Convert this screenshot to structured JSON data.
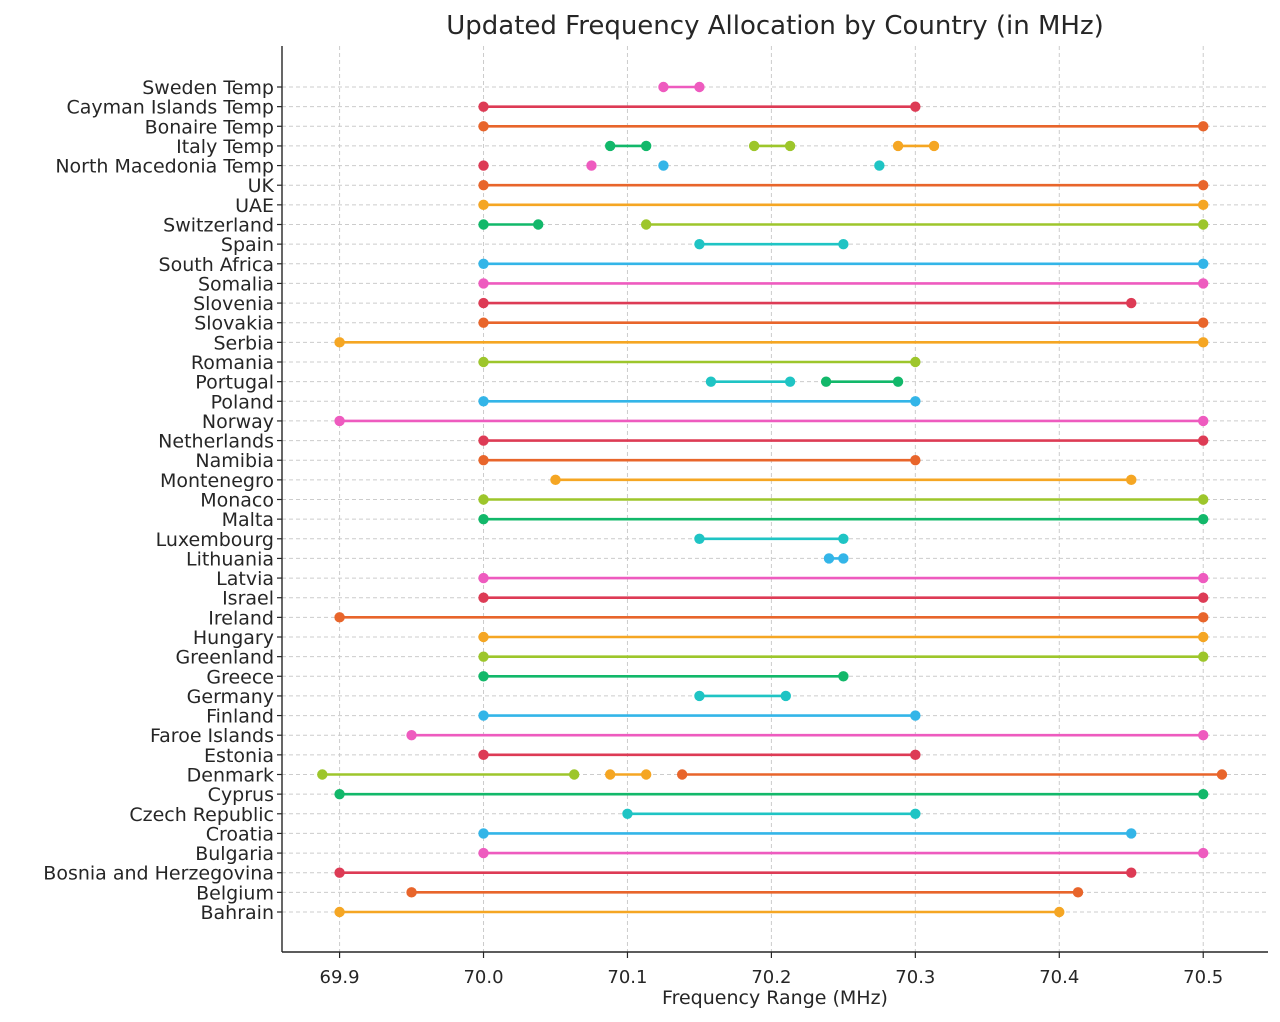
{
  "chart_data": {
    "type": "line",
    "title": "Updated Frequency Allocation by Country (in MHz)",
    "xlabel": "Frequency Range (MHz)",
    "ylabel": "",
    "xlim": [
      69.86,
      70.545
    ],
    "grid": true,
    "xticks": [
      "69.9",
      "70.0",
      "70.1",
      "70.2",
      "70.3",
      "70.4",
      "70.5"
    ],
    "categories": [
      "Bahrain",
      "Belgium",
      "Bosnia and Herzegovina",
      "Bulgaria",
      "Croatia",
      "Czech Republic",
      "Cyprus",
      "Denmark",
      "Estonia",
      "Faroe Islands",
      "Finland",
      "Germany",
      "Greece",
      "Greenland",
      "Hungary",
      "Ireland",
      "Israel",
      "Latvia",
      "Lithuania",
      "Luxembourg",
      "Malta",
      "Monaco",
      "Montenegro",
      "Namibia",
      "Netherlands",
      "Norway",
      "Poland",
      "Portugal",
      "Romania",
      "Serbia",
      "Slovakia",
      "Slovenia",
      "Somalia",
      "South Africa",
      "Spain",
      "Switzerland",
      "UAE",
      "UK",
      "North Macedonia Temp",
      "Italy Temp",
      "Bonaire Temp",
      "Cayman Islands Temp",
      "Sweden Temp"
    ],
    "segments": [
      {
        "row": "Bahrain",
        "x": [
          69.9,
          70.4
        ],
        "color": "#f5a623"
      },
      {
        "row": "Belgium",
        "x": [
          69.95,
          70.413
        ],
        "color": "#e8652b"
      },
      {
        "row": "Bosnia and Herzegovina",
        "x": [
          69.9,
          70.45
        ],
        "color": "#dd3b55"
      },
      {
        "row": "Bulgaria",
        "x": [
          70.0,
          70.5
        ],
        "color": "#ee5bbf"
      },
      {
        "row": "Croatia",
        "x": [
          70.0,
          70.45
        ],
        "color": "#33b5e8"
      },
      {
        "row": "Czech Republic",
        "x": [
          70.1,
          70.3
        ],
        "color": "#1fc4c4"
      },
      {
        "row": "Cyprus",
        "x": [
          69.9,
          70.5
        ],
        "color": "#12b86a"
      },
      {
        "row": "Denmark",
        "x": [
          69.888,
          70.063
        ],
        "color": "#9dc62b"
      },
      {
        "row": "Denmark",
        "x": [
          70.088,
          70.113
        ],
        "color": "#f5a623"
      },
      {
        "row": "Denmark",
        "x": [
          70.138,
          70.513
        ],
        "color": "#e8652b"
      },
      {
        "row": "Estonia",
        "x": [
          70.0,
          70.3
        ],
        "color": "#dd3b55"
      },
      {
        "row": "Faroe Islands",
        "x": [
          69.95,
          70.5
        ],
        "color": "#ee5bbf"
      },
      {
        "row": "Finland",
        "x": [
          70.0,
          70.3
        ],
        "color": "#33b5e8"
      },
      {
        "row": "Germany",
        "x": [
          70.15,
          70.21
        ],
        "color": "#1fc4c4"
      },
      {
        "row": "Greece",
        "x": [
          70.0,
          70.25
        ],
        "color": "#12b86a"
      },
      {
        "row": "Greenland",
        "x": [
          70.0,
          70.5
        ],
        "color": "#9dc62b"
      },
      {
        "row": "Hungary",
        "x": [
          70.0,
          70.5
        ],
        "color": "#f5a623"
      },
      {
        "row": "Ireland",
        "x": [
          69.9,
          70.5
        ],
        "color": "#e8652b"
      },
      {
        "row": "Israel",
        "x": [
          70.0,
          70.5
        ],
        "color": "#dd3b55"
      },
      {
        "row": "Latvia",
        "x": [
          70.0,
          70.5
        ],
        "color": "#ee5bbf"
      },
      {
        "row": "Lithuania",
        "x": [
          70.24,
          70.25
        ],
        "color": "#33b5e8"
      },
      {
        "row": "Luxembourg",
        "x": [
          70.15,
          70.25
        ],
        "color": "#1fc4c4"
      },
      {
        "row": "Malta",
        "x": [
          70.0,
          70.5
        ],
        "color": "#12b86a"
      },
      {
        "row": "Monaco",
        "x": [
          70.0,
          70.5
        ],
        "color": "#9dc62b"
      },
      {
        "row": "Montenegro",
        "x": [
          70.05,
          70.45
        ],
        "color": "#f5a623"
      },
      {
        "row": "Namibia",
        "x": [
          70.0,
          70.3
        ],
        "color": "#e8652b"
      },
      {
        "row": "Netherlands",
        "x": [
          70.0,
          70.5
        ],
        "color": "#dd3b55"
      },
      {
        "row": "Norway",
        "x": [
          69.9,
          70.5
        ],
        "color": "#ee5bbf"
      },
      {
        "row": "Poland",
        "x": [
          70.0,
          70.3
        ],
        "color": "#33b5e8"
      },
      {
        "row": "Portugal",
        "x": [
          70.158,
          70.213
        ],
        "color": "#1fc4c4"
      },
      {
        "row": "Portugal",
        "x": [
          70.238,
          70.288
        ],
        "color": "#12b86a"
      },
      {
        "row": "Romania",
        "x": [
          70.0,
          70.3
        ],
        "color": "#9dc62b"
      },
      {
        "row": "Serbia",
        "x": [
          69.9,
          70.5
        ],
        "color": "#f5a623"
      },
      {
        "row": "Slovakia",
        "x": [
          70.0,
          70.5
        ],
        "color": "#e8652b"
      },
      {
        "row": "Slovenia",
        "x": [
          70.0,
          70.45
        ],
        "color": "#dd3b55"
      },
      {
        "row": "Somalia",
        "x": [
          70.0,
          70.5
        ],
        "color": "#ee5bbf"
      },
      {
        "row": "South Africa",
        "x": [
          70.0,
          70.5
        ],
        "color": "#33b5e8"
      },
      {
        "row": "Spain",
        "x": [
          70.15,
          70.25
        ],
        "color": "#1fc4c4"
      },
      {
        "row": "Switzerland",
        "x": [
          70.0,
          70.038
        ],
        "color": "#12b86a"
      },
      {
        "row": "Switzerland",
        "x": [
          70.113,
          70.5
        ],
        "color": "#9dc62b"
      },
      {
        "row": "UAE",
        "x": [
          70.0,
          70.5
        ],
        "color": "#f5a623"
      },
      {
        "row": "UK",
        "x": [
          70.0,
          70.5
        ],
        "color": "#e8652b"
      },
      {
        "row": "North Macedonia Temp",
        "x": [
          70.0,
          70.0
        ],
        "color": "#dd3b55"
      },
      {
        "row": "North Macedonia Temp",
        "x": [
          70.075,
          70.075
        ],
        "color": "#ee5bbf"
      },
      {
        "row": "North Macedonia Temp",
        "x": [
          70.125,
          70.125
        ],
        "color": "#33b5e8"
      },
      {
        "row": "North Macedonia Temp",
        "x": [
          70.275,
          70.275
        ],
        "color": "#1fc4c4"
      },
      {
        "row": "Italy Temp",
        "x": [
          70.088,
          70.113
        ],
        "color": "#12b86a"
      },
      {
        "row": "Italy Temp",
        "x": [
          70.188,
          70.213
        ],
        "color": "#9dc62b"
      },
      {
        "row": "Italy Temp",
        "x": [
          70.288,
          70.313
        ],
        "color": "#f5a623"
      },
      {
        "row": "Bonaire Temp",
        "x": [
          70.0,
          70.5
        ],
        "color": "#e8652b"
      },
      {
        "row": "Cayman Islands Temp",
        "x": [
          70.0,
          70.3
        ],
        "color": "#dd3b55"
      },
      {
        "row": "Sweden Temp",
        "x": [
          70.125,
          70.15
        ],
        "color": "#ee5bbf"
      }
    ]
  }
}
